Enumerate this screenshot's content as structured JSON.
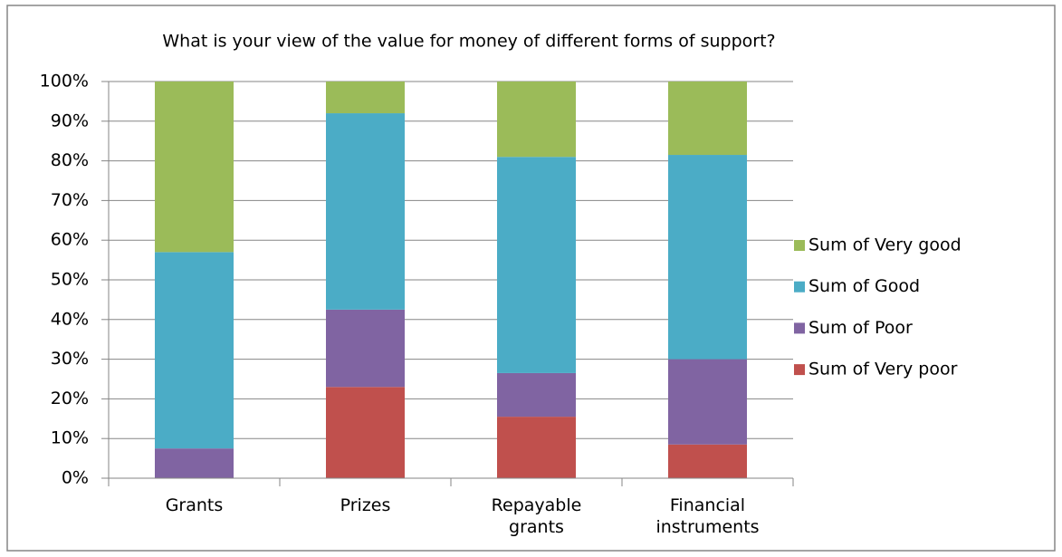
{
  "chart_data": {
    "type": "stacked_bar",
    "title": "What is your view of the value for money of different forms of support?",
    "categories": [
      "Grants",
      "Prizes",
      "Repayable grants",
      "Financial instruments"
    ],
    "series": [
      {
        "name": "Sum of Very poor",
        "color": "#c0504d",
        "values": [
          0,
          23,
          15.5,
          8.5
        ]
      },
      {
        "name": "Sum of Poor",
        "color": "#8064a2",
        "values": [
          7.5,
          19.5,
          11,
          21.5
        ]
      },
      {
        "name": "Sum of Good",
        "color": "#4bacc6",
        "values": [
          49.5,
          49.5,
          54.5,
          51.5
        ]
      },
      {
        "name": "Sum of Very good",
        "color": "#9bbb59",
        "values": [
          43,
          8,
          19,
          18.5
        ]
      }
    ],
    "ylim": [
      0,
      100
    ],
    "yticks": [
      {
        "value": 0,
        "label": "0%"
      },
      {
        "value": 10,
        "label": "10%"
      },
      {
        "value": 20,
        "label": "20%"
      },
      {
        "value": 30,
        "label": "30%"
      },
      {
        "value": 40,
        "label": "40%"
      },
      {
        "value": 50,
        "label": "50%"
      },
      {
        "value": 60,
        "label": "60%"
      },
      {
        "value": 70,
        "label": "70%"
      },
      {
        "value": 80,
        "label": "80%"
      },
      {
        "value": 90,
        "label": "90%"
      },
      {
        "value": 100,
        "label": "100%"
      }
    ],
    "grid": true,
    "legend": "right"
  }
}
